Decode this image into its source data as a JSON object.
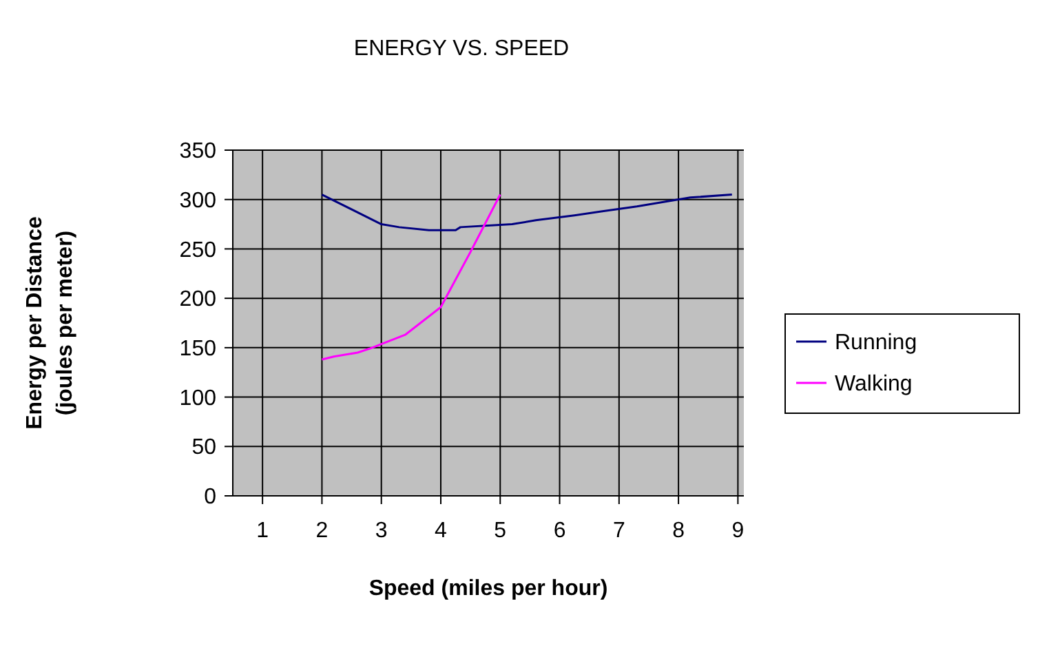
{
  "chart_data": {
    "type": "line",
    "title": "ENERGY VS. SPEED",
    "xlabel": "Speed (miles per hour)",
    "ylabel": "Energy per Distance (joules per meter)",
    "xlim": [
      0.5,
      9.1
    ],
    "xticks": [
      1,
      2,
      3,
      4,
      5,
      6,
      7,
      8,
      9
    ],
    "ylim": [
      0,
      350
    ],
    "yticks": [
      0,
      50,
      100,
      150,
      200,
      250,
      300,
      350
    ],
    "grid": true,
    "legend": "right",
    "marker": "none",
    "series": [
      {
        "name": "Running",
        "color": "#000080",
        "x": [
          2,
          3,
          3.3,
          3.8,
          4.25,
          4.33,
          5.2,
          5.6,
          6.25,
          6.7,
          7.3,
          7.8,
          8.2,
          8.9
        ],
        "values": [
          305,
          275,
          272,
          269,
          269,
          272,
          275,
          279,
          284,
          288,
          293,
          298,
          302,
          305
        ]
      },
      {
        "name": "Walking",
        "color": "#ff00ff",
        "x": [
          2,
          2.2,
          2.6,
          2.8,
          3.4,
          4,
          4.5,
          5
        ],
        "values": [
          138,
          141,
          145,
          149,
          163,
          191,
          247,
          305
        ]
      }
    ]
  }
}
